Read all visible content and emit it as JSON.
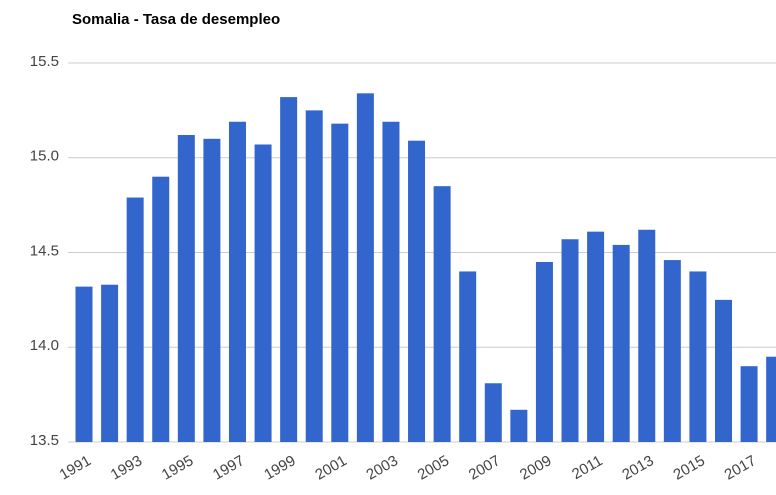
{
  "chart_data": {
    "type": "bar",
    "title": "Somalia - Tasa de desempleo",
    "categories": [
      "1991",
      null,
      "1993",
      null,
      "1995",
      null,
      "1997",
      null,
      "1999",
      null,
      "2001",
      null,
      "2003",
      null,
      "2005",
      null,
      "2007",
      null,
      "2009",
      null,
      "2011",
      null,
      "2013",
      null,
      "2015",
      null,
      "2017",
      null
    ],
    "values": [
      14.32,
      14.33,
      14.79,
      14.9,
      15.12,
      15.1,
      15.19,
      15.07,
      15.32,
      15.25,
      15.18,
      15.34,
      15.19,
      15.09,
      14.85,
      14.4,
      13.81,
      13.67,
      14.45,
      14.57,
      14.61,
      14.54,
      14.62,
      14.46,
      14.4,
      14.25,
      13.9,
      13.95
    ],
    "color": "#3366cc",
    "ylim": [
      13.5,
      15.5
    ],
    "yticks": [
      13.5,
      {
        "value": 14,
        "label": "14.0"
      },
      14.5,
      {
        "value": 15,
        "label": "15.0"
      },
      15.5
    ],
    "grid": true
  }
}
